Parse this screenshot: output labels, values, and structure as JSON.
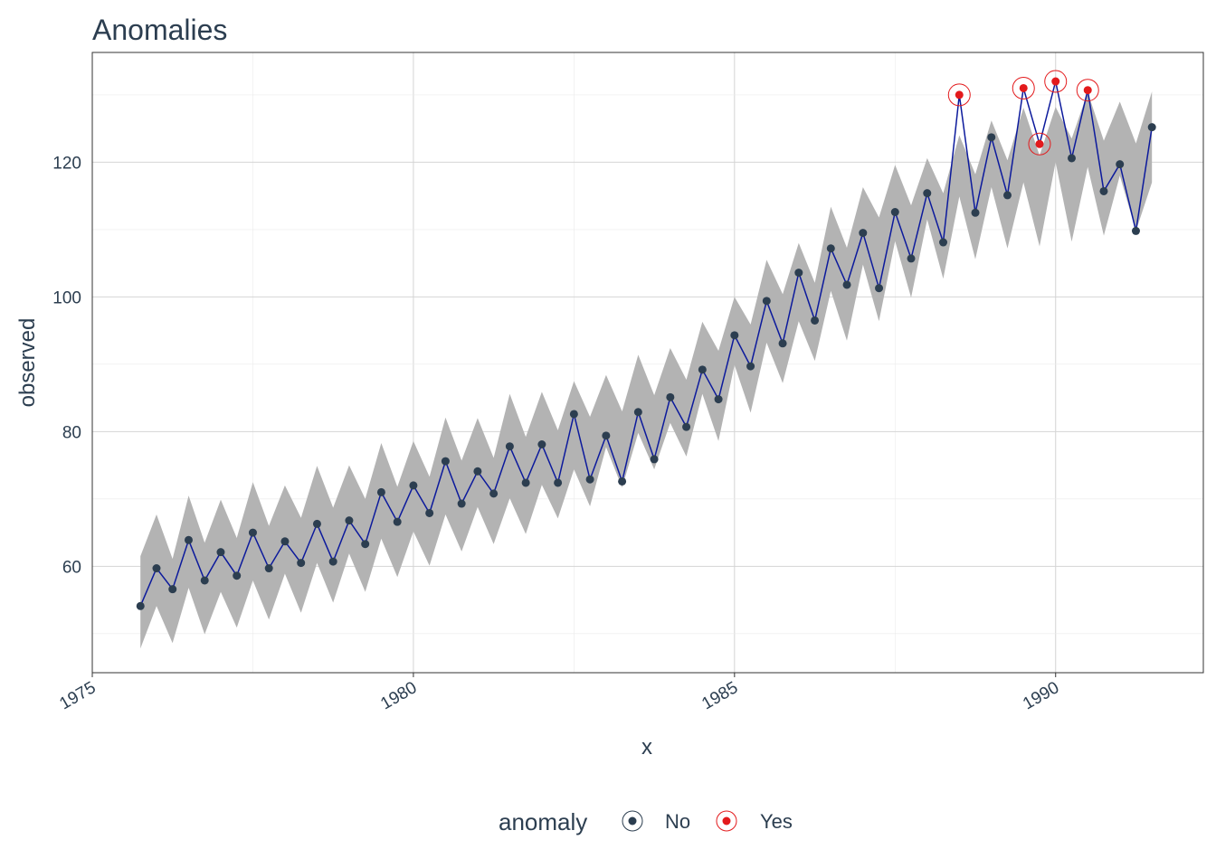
{
  "chart_data": {
    "type": "line",
    "title": "Anomalies",
    "xlabel": "x",
    "ylabel": "observed",
    "xlim": [
      1975,
      1992.3
    ],
    "ylim": [
      44.2,
      136.3
    ],
    "x_ticks": [
      1975,
      1980,
      1985,
      1990
    ],
    "x_tick_labels": [
      "1975",
      "1980",
      "1985",
      "1990"
    ],
    "y_ticks": [
      60,
      80,
      100,
      120
    ],
    "y_tick_labels": [
      "60",
      "80",
      "100",
      "120"
    ],
    "grid": true,
    "legend_position": "bottom",
    "legend": {
      "title": "anomaly",
      "items": [
        {
          "label": "No",
          "color": "#2c3e50"
        },
        {
          "label": "Yes",
          "color": "#e31a1c"
        }
      ]
    },
    "colors": {
      "line": "#0c1a9c",
      "band": "#b3b3b3",
      "normal_point": "#2c3e50",
      "anomaly_point": "#e31a1c"
    },
    "x": [
      1975.75,
      1976.0,
      1976.25,
      1976.5,
      1976.75,
      1977.0,
      1977.25,
      1977.5,
      1977.75,
      1978.0,
      1978.25,
      1978.5,
      1978.75,
      1979.0,
      1979.25,
      1979.5,
      1979.75,
      1980.0,
      1980.25,
      1980.5,
      1980.75,
      1981.0,
      1981.25,
      1981.5,
      1981.75,
      1982.0,
      1982.25,
      1982.5,
      1982.75,
      1983.0,
      1983.25,
      1983.5,
      1983.75,
      1984.0,
      1984.25,
      1984.5,
      1984.75,
      1985.0,
      1985.25,
      1985.5,
      1985.75,
      1986.0,
      1986.25,
      1986.5,
      1986.75,
      1987.0,
      1987.25,
      1987.5,
      1987.75,
      1988.0,
      1988.25,
      1988.5,
      1988.75,
      1989.0,
      1989.25,
      1989.5,
      1989.75,
      1990.0,
      1990.25,
      1990.5,
      1990.75,
      1991.0,
      1991.25,
      1991.5
    ],
    "series": [
      {
        "name": "observed",
        "values": [
          54.1,
          59.7,
          56.6,
          63.9,
          57.9,
          62.1,
          58.6,
          65.0,
          59.7,
          63.7,
          60.5,
          66.3,
          60.7,
          66.8,
          63.3,
          71.0,
          66.6,
          72.0,
          67.9,
          75.6,
          69.3,
          74.1,
          70.8,
          77.8,
          72.4,
          78.1,
          72.4,
          82.6,
          72.9,
          79.4,
          72.6,
          82.9,
          75.9,
          85.1,
          80.7,
          89.2,
          84.8,
          94.3,
          89.7,
          99.4,
          93.1,
          103.6,
          96.5,
          107.2,
          101.8,
          109.5,
          101.3,
          112.6,
          105.7,
          115.4,
          108.1,
          130.0,
          112.5,
          123.7,
          115.1,
          131.0,
          122.7,
          132.0,
          120.6,
          130.7,
          115.7,
          119.7,
          109.8,
          125.2
        ]
      },
      {
        "name": "band",
        "lower": [
          47.8,
          54.1,
          48.6,
          56.8,
          49.9,
          56.2,
          50.9,
          57.9,
          52.1,
          58.9,
          53.1,
          60.5,
          54.6,
          61.9,
          56.2,
          64.1,
          58.4,
          65.2,
          60.1,
          67.7,
          62.2,
          68.8,
          63.3,
          70.1,
          64.8,
          72.1,
          67.1,
          74.4,
          68.9,
          77.7,
          71.7,
          79.8,
          74.4,
          81.3,
          76.3,
          85.6,
          78.6,
          89.9,
          82.8,
          93.2,
          87.2,
          96.4,
          90.5,
          100.9,
          93.5,
          104.8,
          96.4,
          108.3,
          99.9,
          111.5,
          102.7,
          114.9,
          105.6,
          116.3,
          107.2,
          117.0,
          107.5,
          120.0,
          108.2,
          119.3,
          109.1,
          118.0,
          109.8,
          117.0
        ],
        "upper": [
          61.5,
          67.7,
          61.1,
          70.5,
          63.5,
          69.9,
          64.2,
          72.5,
          66.0,
          72.0,
          67.2,
          74.9,
          68.7,
          75.0,
          70.0,
          78.3,
          71.8,
          78.6,
          73.3,
          82.1,
          75.7,
          82.0,
          76.1,
          85.6,
          79.2,
          85.9,
          80.2,
          87.5,
          82.2,
          88.4,
          83.0,
          91.4,
          85.4,
          92.4,
          87.7,
          96.3,
          92.0,
          100.0,
          95.9,
          105.5,
          100.4,
          108.0,
          102.1,
          113.4,
          107.3,
          116.3,
          111.8,
          119.6,
          113.6,
          120.6,
          115.4,
          124.0,
          118.2,
          126.2,
          120.3,
          128.1,
          121.0,
          128.2,
          123.5,
          130.4,
          123.2,
          129.0,
          122.8,
          130.5
        ]
      }
    ],
    "anomalies": [
      1988.5,
      1989.5,
      1989.75,
      1990.0,
      1990.5
    ]
  }
}
